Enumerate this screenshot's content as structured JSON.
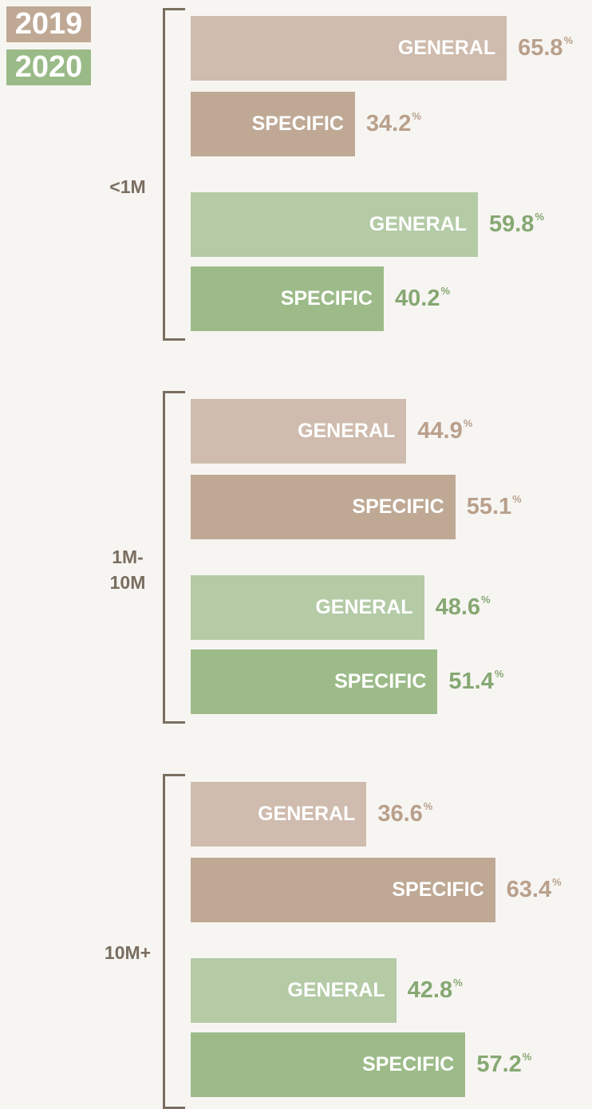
{
  "chart_data": {
    "type": "bar",
    "unit": "%",
    "xlim": [
      0,
      100
    ],
    "categories": [
      "<1M",
      "1M-10M",
      "10M+"
    ],
    "bar_labels": [
      "GENERAL",
      "SPECIFIC"
    ],
    "series": [
      {
        "name": "2019",
        "color": "#bfa995",
        "bar_colors": [
          "#cfbcae",
          "#bfa995"
        ],
        "label_color": "#b9a08c",
        "values": [
          [
            65.8,
            34.2
          ],
          [
            44.9,
            55.1
          ],
          [
            36.6,
            63.4
          ]
        ]
      },
      {
        "name": "2020",
        "color": "#9aba88",
        "bar_colors": [
          "#b4cba6",
          "#9dbb89"
        ],
        "label_color": "#86a873",
        "values": [
          [
            59.8,
            40.2
          ],
          [
            48.6,
            51.4
          ],
          [
            42.8,
            57.2
          ]
        ]
      }
    ]
  }
}
